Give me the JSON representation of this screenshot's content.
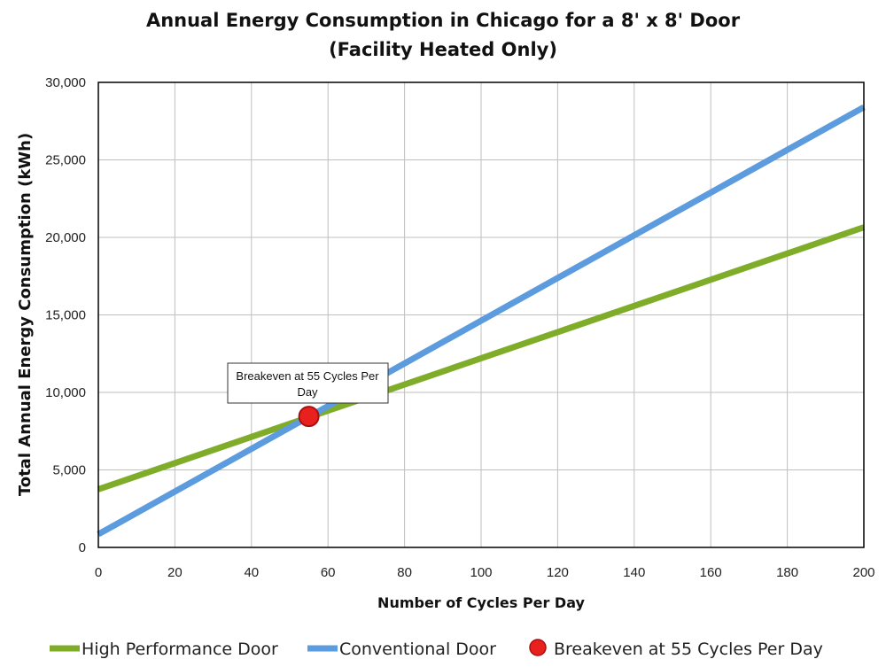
{
  "chart_data": {
    "type": "line",
    "title": [
      "Annual Energy Consumption in Chicago for a 8' x 8' Door",
      "(Facility Heated Only)"
    ],
    "xlabel": "Number of Cycles Per Day",
    "ylabel": "Total Annual Energy Consumption (kWh)",
    "xlim": [
      0,
      200
    ],
    "ylim": [
      0,
      30000
    ],
    "xticks": [
      0,
      20,
      40,
      60,
      80,
      100,
      120,
      140,
      160,
      180,
      200
    ],
    "yticks": [
      0,
      5000,
      10000,
      15000,
      20000,
      25000,
      30000
    ],
    "xtick_labels": [
      "0",
      "20",
      "40",
      "60",
      "80",
      "100",
      "120",
      "140",
      "160",
      "180",
      "200"
    ],
    "ytick_labels": [
      "0",
      "5,000",
      "10,000",
      "15,000",
      "20,000",
      "25,000",
      "30,000"
    ],
    "grid": true,
    "legend_position": "bottom",
    "series": [
      {
        "name": "High Performance Door",
        "color": "#7fad2a",
        "x": [
          0,
          200
        ],
        "y": [
          3750,
          20650
        ]
      },
      {
        "name": "Conventional Door",
        "color": "#5b9bde",
        "x": [
          0,
          200
        ],
        "y": [
          850,
          28400
        ]
      }
    ],
    "points": [
      {
        "name": "Breakeven at 55 Cycles Per Day",
        "color": "#e8201e",
        "x": 55,
        "y": 8450
      }
    ],
    "annotations": [
      {
        "text": [
          "Breakeven at 55 Cycles Per",
          "Day"
        ],
        "x": 55,
        "y": 8450
      }
    ]
  }
}
